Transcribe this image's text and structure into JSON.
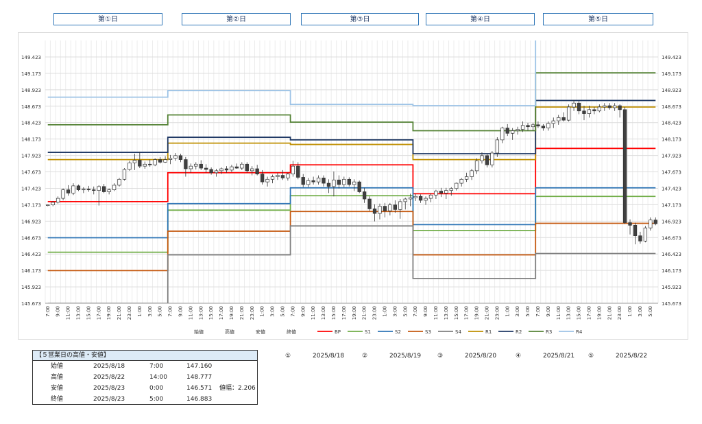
{
  "days": [
    "第①日",
    "第②日",
    "第③日",
    "第④日",
    "第⑤日"
  ],
  "summary": {
    "title": "【５営業日の高値・安値】",
    "rows": [
      {
        "label": "始値",
        "date": "2025/8/18",
        "time": "7:00",
        "price": "147.160",
        "extra": ""
      },
      {
        "label": "高値",
        "date": "2025/8/22",
        "time": "14:00",
        "price": "148.777",
        "extra": ""
      },
      {
        "label": "安値",
        "date": "2025/8/23",
        "time": "0:00",
        "price": "146.571",
        "extra": "値幅：2.206"
      },
      {
        "label": "終値",
        "date": "2025/8/23",
        "time": "5:00",
        "price": "146.883",
        "extra": ""
      }
    ]
  },
  "date_refs": [
    {
      "num": "①",
      "date": "2025/8/18"
    },
    {
      "num": "②",
      "date": "2025/8/19"
    },
    {
      "num": "③",
      "date": "2025/8/20"
    },
    {
      "num": "④",
      "date": "2025/8/21"
    },
    {
      "num": "⑤",
      "date": "2025/8/22"
    }
  ],
  "chart_data": {
    "type": "line",
    "ylim": [
      145.673,
      149.673
    ],
    "yticks": [
      "145.673",
      "145.923",
      "146.173",
      "146.423",
      "146.673",
      "146.923",
      "147.173",
      "147.423",
      "147.673",
      "147.923",
      "148.173",
      "148.423",
      "148.673",
      "148.923",
      "149.173",
      "149.423"
    ],
    "xticks": [
      "7:00",
      "9:00",
      "11:00",
      "13:00",
      "15:00",
      "17:00",
      "19:00",
      "21:00",
      "23:00",
      "1:00",
      "3:00",
      "5:00",
      "7:00",
      "9:00",
      "11:00",
      "13:00",
      "15:00",
      "17:00",
      "19:00",
      "21:00",
      "23:00",
      "1:00",
      "3:00",
      "5:00",
      "7:00",
      "9:00",
      "11:00",
      "13:00",
      "15:00",
      "17:00",
      "19:00",
      "21:00",
      "23:00",
      "1:00",
      "3:00",
      "5:00",
      "7:00",
      "9:00",
      "11:00",
      "13:00",
      "15:00",
      "17:00",
      "19:00",
      "21:00",
      "23:00",
      "1:00",
      "3:00",
      "5:00",
      "7:00",
      "9:00",
      "11:00",
      "13:00",
      "15:00",
      "17:00",
      "19:00",
      "21:00",
      "23:00",
      "1:00",
      "3:00",
      "5:00"
    ],
    "legend": [
      "始値",
      "高値",
      "安値",
      "終値",
      "BP",
      "S1",
      "S2",
      "S3",
      "S4",
      "R1",
      "R2",
      "R3",
      "R4"
    ],
    "legend_position": "bottom",
    "grid": true,
    "series": [
      {
        "name": "BP",
        "color": "#ff0000",
        "values": [
          147.22,
          147.66,
          147.78,
          147.34,
          148.03
        ]
      },
      {
        "name": "S1",
        "color": "#70ad47",
        "values": [
          146.45,
          147.09,
          147.31,
          146.78,
          147.3
        ]
      },
      {
        "name": "S2",
        "color": "#2e75b6",
        "values": [
          146.67,
          147.19,
          147.43,
          146.87,
          147.43
        ]
      },
      {
        "name": "S3",
        "color": "#c55a11",
        "values": [
          146.17,
          146.77,
          147.07,
          146.41,
          146.89
        ]
      },
      {
        "name": "S4",
        "color": "#7f7f7f",
        "values": [
          145.67,
          146.41,
          146.85,
          146.05,
          146.43
        ]
      },
      {
        "name": "R1",
        "color": "#bf8f00",
        "values": [
          147.86,
          148.11,
          148.09,
          147.86,
          148.66
        ]
      },
      {
        "name": "R2",
        "color": "#1f3864",
        "values": [
          147.97,
          148.2,
          148.16,
          147.95,
          148.76
        ]
      },
      {
        "name": "R3",
        "color": "#548235",
        "values": [
          148.39,
          148.54,
          148.43,
          148.3,
          149.18
        ]
      },
      {
        "name": "R4",
        "color": "#9dc3e6",
        "values": [
          148.81,
          148.91,
          148.7,
          148.68,
          149.8
        ]
      }
    ],
    "candles": [
      [
        147.16,
        147.16,
        147.15,
        147.17
      ],
      [
        147.17,
        147.23,
        147.15,
        147.21
      ],
      [
        147.21,
        147.3,
        147.19,
        147.27
      ],
      [
        147.27,
        147.42,
        147.24,
        147.4
      ],
      [
        147.4,
        147.47,
        147.31,
        147.35
      ],
      [
        147.35,
        147.5,
        147.32,
        147.46
      ],
      [
        147.46,
        147.48,
        147.38,
        147.4
      ],
      [
        147.4,
        147.44,
        147.35,
        147.41
      ],
      [
        147.41,
        147.46,
        147.37,
        147.4
      ],
      [
        147.4,
        147.45,
        147.33,
        147.39
      ],
      [
        147.39,
        147.47,
        147.16,
        147.45
      ],
      [
        147.45,
        147.49,
        147.35,
        147.37
      ],
      [
        147.37,
        147.42,
        147.33,
        147.4
      ],
      [
        147.4,
        147.5,
        147.38,
        147.47
      ],
      [
        147.47,
        147.58,
        147.45,
        147.56
      ],
      [
        147.56,
        147.73,
        147.54,
        147.71
      ],
      [
        147.71,
        147.84,
        147.69,
        147.81
      ],
      [
        147.81,
        147.95,
        147.7,
        147.85
      ],
      [
        147.85,
        147.98,
        147.73,
        147.76
      ],
      [
        147.76,
        147.83,
        147.72,
        147.79
      ],
      [
        147.79,
        147.86,
        147.75,
        147.78
      ],
      [
        147.78,
        147.88,
        147.76,
        147.86
      ],
      [
        147.86,
        147.9,
        147.8,
        147.82
      ],
      [
        147.82,
        147.91,
        147.81,
        147.86
      ],
      [
        147.86,
        147.93,
        147.79,
        147.88
      ],
      [
        147.88,
        147.96,
        147.84,
        147.92
      ],
      [
        147.92,
        147.95,
        147.82,
        147.86
      ],
      [
        147.86,
        147.9,
        147.6,
        147.72
      ],
      [
        147.72,
        147.8,
        147.66,
        147.76
      ],
      [
        147.76,
        147.82,
        147.71,
        147.79
      ],
      [
        147.79,
        147.85,
        147.7,
        147.73
      ],
      [
        147.73,
        147.79,
        147.66,
        147.71
      ],
      [
        147.71,
        147.74,
        147.63,
        147.66
      ],
      [
        147.66,
        147.72,
        147.6,
        147.69
      ],
      [
        147.69,
        147.74,
        147.64,
        147.72
      ],
      [
        147.72,
        147.76,
        147.66,
        147.7
      ],
      [
        147.7,
        147.78,
        147.67,
        147.75
      ],
      [
        147.75,
        147.8,
        147.72,
        147.73
      ],
      [
        147.73,
        147.82,
        147.7,
        147.79
      ],
      [
        147.79,
        147.82,
        147.66,
        147.69
      ],
      [
        147.69,
        147.76,
        147.62,
        147.72
      ],
      [
        147.72,
        147.78,
        147.62,
        147.64
      ],
      [
        147.64,
        147.7,
        147.48,
        147.52
      ],
      [
        147.52,
        147.6,
        147.45,
        147.56
      ],
      [
        147.56,
        147.63,
        147.5,
        147.6
      ],
      [
        147.6,
        147.66,
        147.55,
        147.62
      ],
      [
        147.62,
        147.7,
        147.55,
        147.58
      ],
      [
        147.58,
        147.66,
        147.54,
        147.64
      ],
      [
        147.64,
        147.84,
        147.6,
        147.76
      ],
      [
        147.76,
        147.82,
        147.56,
        147.59
      ],
      [
        147.59,
        147.64,
        147.44,
        147.48
      ],
      [
        147.48,
        147.58,
        147.44,
        147.54
      ],
      [
        147.54,
        147.6,
        147.48,
        147.52
      ],
      [
        147.52,
        147.62,
        147.48,
        147.58
      ],
      [
        147.58,
        147.62,
        147.45,
        147.5
      ],
      [
        147.5,
        147.56,
        147.35,
        147.45
      ],
      [
        147.45,
        147.68,
        147.3,
        147.55
      ],
      [
        147.55,
        147.62,
        147.42,
        147.48
      ],
      [
        147.48,
        147.6,
        147.44,
        147.56
      ],
      [
        147.56,
        147.59,
        147.45,
        147.48
      ],
      [
        147.48,
        147.56,
        147.38,
        147.52
      ],
      [
        147.52,
        147.54,
        147.35,
        147.37
      ],
      [
        147.37,
        147.43,
        147.2,
        147.26
      ],
      [
        147.26,
        147.3,
        147.08,
        147.11
      ],
      [
        147.11,
        147.18,
        146.92,
        147.04
      ],
      [
        147.04,
        147.19,
        146.95,
        147.15
      ],
      [
        147.15,
        147.2,
        146.98,
        147.08
      ],
      [
        147.08,
        147.2,
        147.01,
        147.17
      ],
      [
        147.17,
        147.24,
        147.05,
        147.1
      ],
      [
        147.1,
        147.26,
        146.96,
        147.22
      ],
      [
        147.22,
        147.28,
        147.1,
        147.26
      ],
      [
        147.26,
        147.34,
        147.15,
        147.28
      ],
      [
        147.28,
        147.34,
        147.23,
        147.3
      ],
      [
        147.3,
        147.33,
        147.2,
        147.24
      ],
      [
        147.24,
        147.3,
        147.17,
        147.27
      ],
      [
        147.27,
        147.35,
        147.21,
        147.32
      ],
      [
        147.32,
        147.4,
        147.26,
        147.38
      ],
      [
        147.38,
        147.43,
        147.29,
        147.35
      ],
      [
        147.35,
        147.43,
        147.26,
        147.39
      ],
      [
        147.39,
        147.44,
        147.31,
        147.42
      ],
      [
        147.42,
        147.51,
        147.39,
        147.5
      ],
      [
        147.5,
        147.58,
        147.45,
        147.56
      ],
      [
        147.56,
        147.66,
        147.52,
        147.6
      ],
      [
        147.6,
        147.72,
        147.55,
        147.69
      ],
      [
        147.69,
        147.88,
        147.64,
        147.84
      ],
      [
        147.84,
        147.97,
        147.8,
        147.92
      ],
      [
        147.92,
        147.95,
        147.74,
        147.78
      ],
      [
        147.78,
        147.99,
        147.74,
        147.96
      ],
      [
        147.96,
        148.2,
        147.9,
        148.16
      ],
      [
        148.16,
        148.36,
        148.11,
        148.34
      ],
      [
        148.34,
        148.4,
        148.22,
        148.26
      ],
      [
        148.26,
        148.34,
        148.16,
        148.3
      ],
      [
        148.3,
        148.36,
        148.24,
        148.32
      ],
      [
        148.32,
        148.44,
        148.28,
        148.38
      ],
      [
        148.38,
        148.42,
        148.3,
        148.36
      ],
      [
        148.36,
        148.42,
        148.3,
        148.39
      ],
      [
        148.39,
        148.44,
        148.34,
        148.37
      ],
      [
        148.37,
        148.4,
        148.3,
        148.34
      ],
      [
        148.34,
        148.44,
        148.3,
        148.41
      ],
      [
        148.41,
        148.5,
        148.34,
        148.45
      ],
      [
        148.45,
        148.54,
        148.39,
        148.5
      ],
      [
        148.5,
        148.58,
        148.44,
        148.46
      ],
      [
        148.46,
        148.7,
        148.44,
        148.66
      ],
      [
        148.66,
        148.77,
        148.6,
        148.72
      ],
      [
        148.72,
        148.75,
        148.55,
        148.6
      ],
      [
        148.6,
        148.68,
        148.46,
        148.56
      ],
      [
        148.56,
        148.68,
        148.5,
        148.62
      ],
      [
        148.62,
        148.66,
        148.55,
        148.6
      ],
      [
        148.6,
        148.7,
        148.58,
        148.66
      ],
      [
        148.66,
        148.72,
        148.6,
        148.68
      ],
      [
        148.68,
        148.72,
        148.62,
        148.65
      ],
      [
        148.65,
        148.72,
        148.6,
        148.68
      ],
      [
        148.68,
        148.7,
        148.5,
        148.62
      ],
      [
        148.62,
        148.66,
        146.88,
        146.9
      ],
      [
        146.9,
        146.95,
        146.72,
        146.86
      ],
      [
        146.86,
        146.9,
        146.57,
        146.7
      ],
      [
        146.7,
        146.76,
        146.58,
        146.62
      ],
      [
        146.62,
        146.85,
        146.6,
        146.82
      ],
      [
        146.82,
        146.98,
        146.78,
        146.94
      ],
      [
        146.94,
        146.98,
        146.86,
        146.883
      ]
    ]
  }
}
